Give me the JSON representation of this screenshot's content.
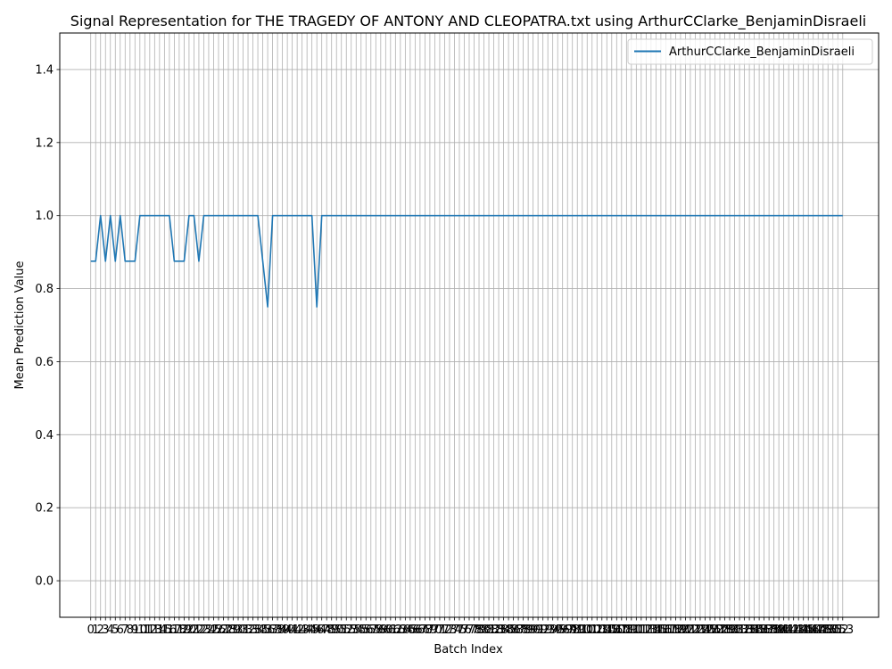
{
  "chart_data": {
    "type": "line",
    "title": "Signal Representation for THE TRAGEDY OF ANTONY AND CLEOPATRA.txt using ArthurCClarke_BenjaminDisraeli",
    "xlabel": "Batch Index",
    "ylabel": "Mean Prediction Value",
    "xlim": [
      -6.3,
      160.3
    ],
    "ylim": [
      -0.1,
      1.5
    ],
    "yticks": [
      0.0,
      0.2,
      0.4,
      0.6,
      0.8,
      1.0,
      1.2,
      1.4
    ],
    "ytick_labels": [
      "0.0",
      "0.2",
      "0.4",
      "0.6",
      "0.8",
      "1.0",
      "1.2",
      "1.4"
    ],
    "grid": true,
    "legend_position": "top-right",
    "colors": {
      "series": "#1f77b4",
      "grid": "#b0b0b0",
      "axes": "#000000"
    },
    "x": [
      0,
      1,
      2,
      3,
      4,
      5,
      6,
      7,
      8,
      9,
      10,
      11,
      12,
      13,
      14,
      15,
      16,
      17,
      18,
      19,
      20,
      21,
      22,
      23,
      24,
      25,
      26,
      27,
      28,
      29,
      30,
      31,
      32,
      33,
      34,
      35,
      36,
      37,
      38,
      39,
      40,
      41,
      42,
      43,
      44,
      45,
      46,
      47,
      48,
      49,
      50,
      51,
      52,
      53,
      54,
      55,
      56,
      57,
      58,
      59,
      60,
      61,
      62,
      63,
      64,
      65,
      66,
      67,
      68,
      69,
      70,
      71,
      72,
      73,
      74,
      75,
      76,
      77,
      78,
      79,
      80,
      81,
      82,
      83,
      84,
      85,
      86,
      87,
      88,
      89,
      90,
      91,
      92,
      93,
      94,
      95,
      96,
      97,
      98,
      99,
      100,
      101,
      102,
      103,
      104,
      105,
      106,
      107,
      108,
      109,
      110,
      111,
      112,
      113,
      114,
      115,
      116,
      117,
      118,
      119,
      120,
      121,
      122,
      123,
      124,
      125,
      126,
      127,
      128,
      129,
      130,
      131,
      132,
      133,
      134,
      135,
      136,
      137,
      138,
      139,
      140,
      141,
      142,
      143,
      144,
      145,
      146,
      147,
      148,
      149,
      150,
      151,
      152,
      153
    ],
    "series": [
      {
        "name": "ArthurCClarke_BenjaminDisraeli",
        "values": [
          0.875,
          0.875,
          1,
          0.875,
          1,
          0.875,
          1,
          0.875,
          0.875,
          0.875,
          1,
          1,
          1,
          1,
          1,
          1,
          1,
          0.875,
          0.875,
          0.875,
          1,
          1,
          0.875,
          1,
          1,
          1,
          1,
          1,
          1,
          1,
          1,
          1,
          1,
          1,
          1,
          0.875,
          0.75,
          1,
          1,
          1,
          1,
          1,
          1,
          1,
          1,
          1,
          0.75,
          1,
          1,
          1,
          1,
          1,
          1,
          1,
          1,
          1,
          1,
          1,
          1,
          1,
          1,
          1,
          1,
          1,
          1,
          1,
          1,
          1,
          1,
          1,
          1,
          1,
          1,
          1,
          1,
          1,
          1,
          1,
          1,
          1,
          1,
          1,
          1,
          1,
          1,
          1,
          1,
          1,
          1,
          1,
          1,
          1,
          1,
          1,
          1,
          1,
          1,
          1,
          1,
          1,
          1,
          1,
          1,
          1,
          1,
          1,
          1,
          1,
          1,
          1,
          1,
          1,
          1,
          1,
          1,
          1,
          1,
          1,
          1,
          1,
          1,
          1,
          1,
          1,
          1,
          1,
          1,
          1,
          1,
          1,
          1,
          1,
          1,
          1,
          1,
          1,
          1,
          1,
          1,
          1,
          1,
          1,
          1,
          1,
          1,
          1,
          1,
          1,
          1,
          1,
          1,
          1,
          1,
          1
        ]
      }
    ]
  }
}
